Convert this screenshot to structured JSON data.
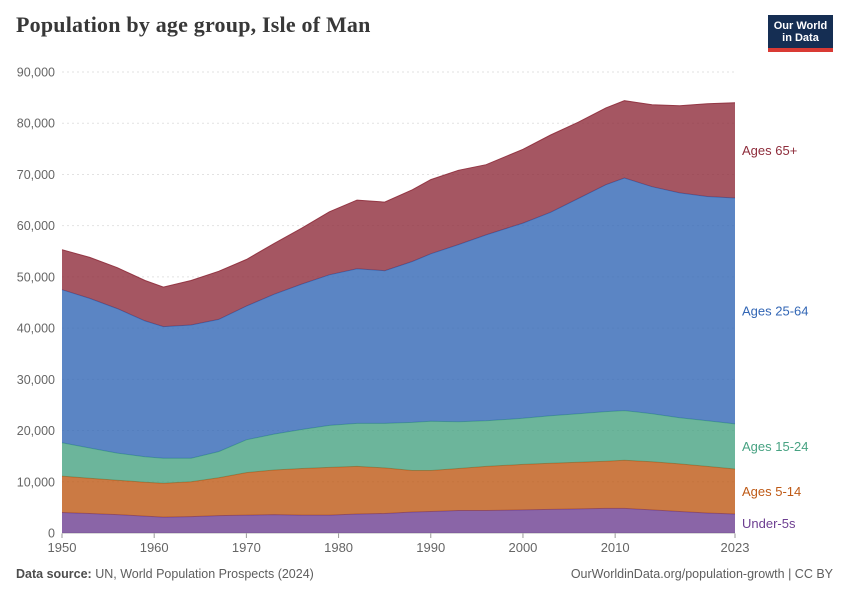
{
  "header": {
    "title": "Population by age group, Isle of Man",
    "logo": {
      "line1": "Our World",
      "line2": "in Data"
    }
  },
  "colors": {
    "logo_bg": "#152e53",
    "logo_bar": "#d93a34",
    "grid": "#e2e2e2",
    "axis": "#b3b3b3",
    "tick": "#999999",
    "tick_text": "#666666"
  },
  "chart_data": {
    "type": "area",
    "stacked": true,
    "title": "Population by age group, Isle of Man",
    "xlabel": "",
    "ylabel": "",
    "ylim": [
      0,
      90000
    ],
    "grid": "dashed-horizontal",
    "legend_position": "right-inline",
    "x": [
      1950,
      1953,
      1956,
      1959,
      1961,
      1964,
      1967,
      1970,
      1973,
      1976,
      1979,
      1982,
      1985,
      1988,
      1990,
      1993,
      1996,
      2000,
      2003,
      2006,
      2009,
      2011,
      2014,
      2017,
      2020,
      2023
    ],
    "xticks": [
      {
        "value": 1950,
        "label": "1950"
      },
      {
        "value": 1960,
        "label": "1960"
      },
      {
        "value": 1970,
        "label": "1970"
      },
      {
        "value": 1980,
        "label": "1980"
      },
      {
        "value": 1990,
        "label": "1990"
      },
      {
        "value": 2000,
        "label": "2000"
      },
      {
        "value": 2010,
        "label": "2010"
      },
      {
        "value": 2023,
        "label": "2023"
      }
    ],
    "yticks": [
      {
        "value": 0,
        "label": "0"
      },
      {
        "value": 10000,
        "label": "10,000"
      },
      {
        "value": 20000,
        "label": "20,000"
      },
      {
        "value": 30000,
        "label": "30,000"
      },
      {
        "value": 40000,
        "label": "40,000"
      },
      {
        "value": 50000,
        "label": "50,000"
      },
      {
        "value": 60000,
        "label": "60,000"
      },
      {
        "value": 70000,
        "label": "70,000"
      },
      {
        "value": 80000,
        "label": "80,000"
      },
      {
        "value": 90000,
        "label": "90,000"
      }
    ],
    "series": [
      {
        "name": "Under-5s",
        "color": "#6d3e91",
        "values": [
          4000,
          3800,
          3600,
          3300,
          3100,
          3200,
          3400,
          3500,
          3600,
          3500,
          3500,
          3700,
          3800,
          4100,
          4200,
          4400,
          4400,
          4500,
          4600,
          4700,
          4800,
          4800,
          4500,
          4200,
          3900,
          3700
        ]
      },
      {
        "name": "Ages 5-14",
        "color": "#be5915",
        "values": [
          7100,
          6900,
          6700,
          6600,
          6600,
          6800,
          7400,
          8300,
          8700,
          9100,
          9300,
          9300,
          8900,
          8100,
          8000,
          8200,
          8600,
          8900,
          9000,
          9100,
          9200,
          9400,
          9400,
          9300,
          9100,
          8800
        ]
      },
      {
        "name": "Ages 15-24",
        "color": "#47a282",
        "values": [
          6500,
          5900,
          5300,
          5000,
          4900,
          4600,
          5100,
          6400,
          7000,
          7600,
          8200,
          8400,
          8700,
          9400,
          9600,
          9100,
          8900,
          9000,
          9300,
          9500,
          9700,
          9700,
          9400,
          9000,
          8900,
          8800
        ]
      },
      {
        "name": "Ages 25-64",
        "color": "#3266b5",
        "values": [
          29900,
          29200,
          28200,
          26500,
          25700,
          26000,
          25800,
          26100,
          27300,
          28400,
          29400,
          30200,
          29800,
          31400,
          32700,
          34600,
          36300,
          38100,
          39700,
          42000,
          44300,
          45400,
          44300,
          43900,
          43800,
          44100
        ]
      },
      {
        "name": "Ages 65+",
        "color": "#8e2c3b",
        "values": [
          7800,
          8000,
          8000,
          7900,
          7700,
          8700,
          9400,
          9100,
          9900,
          10900,
          12300,
          13400,
          13400,
          14000,
          14500,
          14500,
          13700,
          14400,
          15100,
          14900,
          15000,
          15100,
          16000,
          17000,
          18100,
          18600
        ]
      }
    ]
  },
  "footer": {
    "datasource_label": "Data source:",
    "datasource_text": " UN, World Population Prospects (2024)",
    "link_text": "OurWorldinData.org/population-growth | CC BY"
  }
}
